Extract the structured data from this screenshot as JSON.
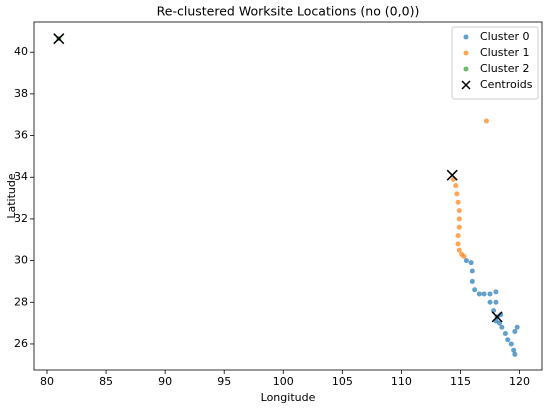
{
  "chart_data": {
    "type": "scatter",
    "title": "Re-clustered Worksite Locations (no (0,0))",
    "x_label": "Longitude",
    "y_label": "Latitude",
    "xlim": [
      78.9,
      121.9
    ],
    "ylim": [
      24.75,
      41.45
    ],
    "xticks": [
      80,
      85,
      90,
      95,
      100,
      105,
      110,
      115,
      120
    ],
    "yticks": [
      26,
      28,
      30,
      32,
      34,
      36,
      38,
      40
    ],
    "legend": "upper right",
    "series": [
      {
        "name": "Cluster 0",
        "color": "#1f77b4",
        "marker": "dot",
        "x": [
          115.5,
          115.9,
          116.0,
          116.0,
          116.2,
          116.6,
          117.0,
          117.5,
          118.0,
          117.5,
          118.0,
          117.8,
          118.1,
          118.3,
          118.5,
          118.8,
          119.0,
          119.3,
          119.5,
          119.6,
          119.8,
          119.6,
          118.0,
          118.4
        ],
        "y": [
          30.0,
          29.9,
          29.5,
          29.0,
          28.6,
          28.4,
          28.4,
          28.4,
          28.5,
          28.0,
          28.0,
          27.6,
          27.3,
          27.0,
          26.8,
          26.5,
          26.2,
          26.0,
          25.7,
          25.5,
          26.8,
          26.6,
          27.1,
          27.4
        ]
      },
      {
        "name": "Cluster 1",
        "color": "#ff7f0e",
        "marker": "dot",
        "x": [
          117.2,
          114.4,
          114.6,
          114.7,
          114.8,
          114.9,
          114.9,
          114.9,
          114.8,
          114.8,
          114.9,
          115.1,
          115.3
        ],
        "y": [
          36.7,
          33.9,
          33.6,
          33.2,
          32.8,
          32.4,
          32.0,
          31.6,
          31.2,
          30.8,
          30.5,
          30.3,
          30.2
        ]
      },
      {
        "name": "Cluster 2",
        "color": "#2ca02c",
        "marker": "dot",
        "x": [
          81.0
        ],
        "y": [
          40.65
        ]
      },
      {
        "name": "Centroids",
        "color": "#000000",
        "marker": "x",
        "x": [
          81.0,
          114.3,
          118.1
        ],
        "y": [
          40.65,
          34.1,
          27.3
        ]
      }
    ]
  }
}
